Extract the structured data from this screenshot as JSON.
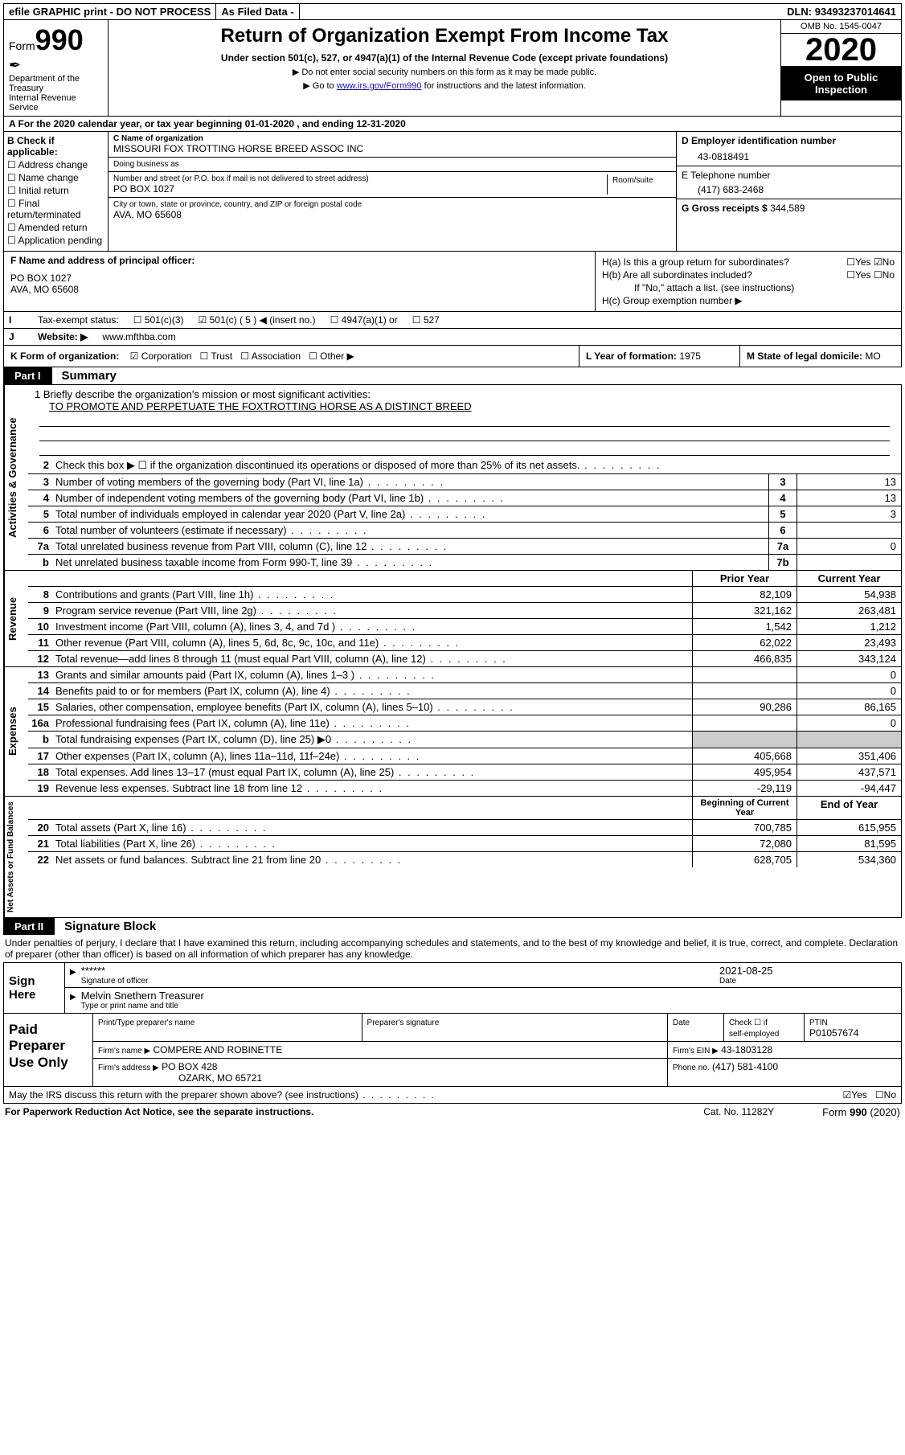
{
  "topbar": {
    "efile": "efile GRAPHIC print - DO NOT PROCESS",
    "asfiled": "As Filed Data -",
    "dln_label": "DLN:",
    "dln": "93493237014641"
  },
  "header": {
    "form_label": "Form",
    "form_number": "990",
    "dept": "Department of the Treasury\nInternal Revenue Service",
    "title": "Return of Organization Exempt From Income Tax",
    "subtitle": "Under section 501(c), 527, or 4947(a)(1) of the Internal Revenue Code (except private foundations)",
    "note1": "▶ Do not enter social security numbers on this form as it may be made public.",
    "note2_a": "▶ Go to ",
    "note2_link": "www.irs.gov/Form990",
    "note2_b": " for instructions and the latest information.",
    "omb": "OMB No. 1545-0047",
    "year": "2020",
    "open": "Open to Public Inspection"
  },
  "rowA": "A   For the 2020 calendar year, or tax year beginning 01-01-2020   , and ending 12-31-2020",
  "colB": {
    "label": "B Check if applicable:",
    "items": [
      "Address change",
      "Name change",
      "Initial return",
      "Final return/terminated",
      "Amended return",
      "Application pending"
    ]
  },
  "colC": {
    "name_lbl": "C Name of organization",
    "name": "MISSOURI FOX TROTTING HORSE BREED ASSOC INC",
    "dba_lbl": "Doing business as",
    "dba": "",
    "street_lbl": "Number and street (or P.O. box if mail is not delivered to street address)",
    "street": "PO BOX 1027",
    "room_lbl": "Room/suite",
    "city_lbl": "City or town, state or province, country, and ZIP or foreign postal code",
    "city": "AVA, MO  65608"
  },
  "colD": {
    "ein_lbl": "D Employer identification number",
    "ein": "43-0818491",
    "tel_lbl": "E Telephone number",
    "tel": "(417) 683-2468",
    "gross_lbl": "G Gross receipts $",
    "gross": "344,589"
  },
  "rowF": {
    "lbl": "F  Name and address of principal officer:",
    "addr1": "PO BOX 1027",
    "addr2": "AVA, MO  65608"
  },
  "rowH": {
    "a": "H(a)  Is this a group return for subordinates?",
    "a_yes": "Yes",
    "a_no": "No",
    "b": "H(b)  Are all subordinates included?",
    "b_yes": "Yes",
    "b_no": "No",
    "b_note": "If \"No,\" attach a list. (see instructions)",
    "c": "H(c)  Group exemption number ▶"
  },
  "rowI": {
    "lbl": "Tax-exempt status:",
    "opt1": "501(c)(3)",
    "opt2": "501(c) ( 5 ) ◀ (insert no.)",
    "opt3": "4947(a)(1) or",
    "opt4": "527"
  },
  "rowJ": {
    "lbl": "Website: ▶",
    "val": "www.mfthba.com"
  },
  "rowK": {
    "lbl": "K Form of organization:",
    "opts": [
      "Corporation",
      "Trust",
      "Association",
      "Other ▶"
    ],
    "checked": 0
  },
  "rowL": {
    "lbl": "L Year of formation:",
    "val": "1975"
  },
  "rowM": {
    "lbl": "M State of legal domicile:",
    "val": "MO"
  },
  "part1": {
    "tag": "Part I",
    "title": "Summary"
  },
  "mission": {
    "line1": "1 Briefly describe the organization's mission or most significant activities:",
    "text": "TO PROMOTE AND PERPETUATE THE FOXTROTTING HORSE AS A DISTINCT BREED"
  },
  "gov_lines": [
    {
      "n": "2",
      "d": "Check this box ▶ ☐ if the organization discontinued its operations or disposed of more than 25% of its net assets."
    },
    {
      "n": "3",
      "d": "Number of voting members of the governing body (Part VI, line 1a)",
      "box": "3",
      "v": "13"
    },
    {
      "n": "4",
      "d": "Number of independent voting members of the governing body (Part VI, line 1b)",
      "box": "4",
      "v": "13"
    },
    {
      "n": "5",
      "d": "Total number of individuals employed in calendar year 2020 (Part V, line 2a)",
      "box": "5",
      "v": "3"
    },
    {
      "n": "6",
      "d": "Total number of volunteers (estimate if necessary)",
      "box": "6",
      "v": ""
    },
    {
      "n": "7a",
      "d": "Total unrelated business revenue from Part VIII, column (C), line 12",
      "box": "7a",
      "v": "0"
    },
    {
      "n": "b",
      "d": "Net unrelated business taxable income from Form 990-T, line 39",
      "box": "7b",
      "v": ""
    }
  ],
  "rev_hdr": {
    "prior": "Prior Year",
    "curr": "Current Year"
  },
  "rev_lines": [
    {
      "n": "8",
      "d": "Contributions and grants (Part VIII, line 1h)",
      "p": "82,109",
      "c": "54,938"
    },
    {
      "n": "9",
      "d": "Program service revenue (Part VIII, line 2g)",
      "p": "321,162",
      "c": "263,481"
    },
    {
      "n": "10",
      "d": "Investment income (Part VIII, column (A), lines 3, 4, and 7d )",
      "p": "1,542",
      "c": "1,212"
    },
    {
      "n": "11",
      "d": "Other revenue (Part VIII, column (A), lines 5, 6d, 8c, 9c, 10c, and 11e)",
      "p": "62,022",
      "c": "23,493"
    },
    {
      "n": "12",
      "d": "Total revenue—add lines 8 through 11 (must equal Part VIII, column (A), line 12)",
      "p": "466,835",
      "c": "343,124"
    }
  ],
  "exp_lines": [
    {
      "n": "13",
      "d": "Grants and similar amounts paid (Part IX, column (A), lines 1–3 )",
      "p": "",
      "c": "0"
    },
    {
      "n": "14",
      "d": "Benefits paid to or for members (Part IX, column (A), line 4)",
      "p": "",
      "c": "0"
    },
    {
      "n": "15",
      "d": "Salaries, other compensation, employee benefits (Part IX, column (A), lines 5–10)",
      "p": "90,286",
      "c": "86,165"
    },
    {
      "n": "16a",
      "d": "Professional fundraising fees (Part IX, column (A), line 11e)",
      "p": "",
      "c": "0"
    },
    {
      "n": "b",
      "d": "Total fundraising expenses (Part IX, column (D), line 25) ▶0",
      "p": "shade",
      "c": "shade"
    },
    {
      "n": "17",
      "d": "Other expenses (Part IX, column (A), lines 11a–11d, 11f–24e)",
      "p": "405,668",
      "c": "351,406"
    },
    {
      "n": "18",
      "d": "Total expenses. Add lines 13–17 (must equal Part IX, column (A), line 25)",
      "p": "495,954",
      "c": "437,571"
    },
    {
      "n": "19",
      "d": "Revenue less expenses. Subtract line 18 from line 12",
      "p": "-29,119",
      "c": "-94,447"
    }
  ],
  "na_hdr": {
    "prior": "Beginning of Current Year",
    "curr": "End of Year"
  },
  "na_lines": [
    {
      "n": "20",
      "d": "Total assets (Part X, line 16)",
      "p": "700,785",
      "c": "615,955"
    },
    {
      "n": "21",
      "d": "Total liabilities (Part X, line 26)",
      "p": "72,080",
      "c": "81,595"
    },
    {
      "n": "22",
      "d": "Net assets or fund balances. Subtract line 21 from line 20",
      "p": "628,705",
      "c": "534,360"
    }
  ],
  "part2": {
    "tag": "Part II",
    "title": "Signature Block"
  },
  "perjury": "Under penalties of perjury, I declare that I have examined this return, including accompanying schedules and statements, and to the best of my knowledge and belief, it is true, correct, and complete. Declaration of preparer (other than officer) is based on all information of which preparer has any knowledge.",
  "sign": {
    "here": "Sign Here",
    "stars": "******",
    "sig_lbl": "Signature of officer",
    "date": "2021-08-25",
    "date_lbl": "Date",
    "name": "Melvin Snethern Treasurer",
    "name_lbl": "Type or print name and title"
  },
  "prep": {
    "lbl": "Paid Preparer Use Only",
    "c1": "Print/Type preparer's name",
    "c2": "Preparer's signature",
    "c3": "Date",
    "c4a": "Check ☐ if",
    "c4b": "self-employed",
    "c5": "PTIN",
    "ptin": "P01057674",
    "firm_lbl": "Firm's name   ▶",
    "firm": "COMPERE AND ROBINETTE",
    "ein_lbl": "Firm's EIN ▶",
    "ein": "43-1803128",
    "addr_lbl": "Firm's address ▶",
    "addr1": "PO BOX 428",
    "addr2": "OZARK, MO  65721",
    "phone_lbl": "Phone no.",
    "phone": "(417) 581-4100"
  },
  "discuss": {
    "q": "May the IRS discuss this return with the preparer shown above? (see instructions)",
    "yes": "Yes",
    "no": "No"
  },
  "footer": {
    "left": "For Paperwork Reduction Act Notice, see the separate instructions.",
    "mid": "Cat. No. 11282Y",
    "right": "Form 990 (2020)"
  }
}
